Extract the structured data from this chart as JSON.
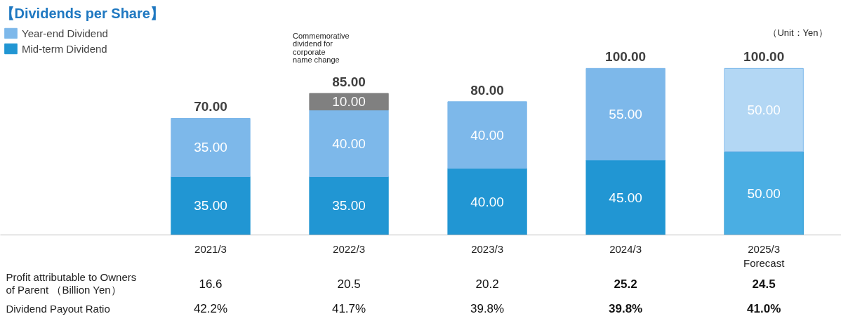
{
  "chart_data": {
    "type": "bar",
    "title": "【Dividends per Share】",
    "stacked": true,
    "legend": "top left",
    "grid": false,
    "tick_labels": "x",
    "categories": [
      "2021/3",
      "2022/3",
      "2023/3",
      "2024/3",
      "2025/3\nForecast"
    ],
    "series": [
      {
        "name": "Mid-term Dividend",
        "color": "#2196d3",
        "colors": [
          "#2196d3",
          "#2196d3",
          "#2196d3",
          "#2196d3",
          "#4aaee3"
        ],
        "values": [
          35,
          35,
          40,
          45,
          50
        ],
        "value_labels": [
          "35.00",
          "35.00",
          "40.00",
          "45.00",
          "50.00"
        ]
      },
      {
        "name": "Year-end Dividend",
        "color": "#7db8ea",
        "colors": [
          "#7db8ea",
          "#7db8ea",
          "#7db8ea",
          "#7db8ea",
          "#b3d7f4"
        ],
        "values": [
          35,
          40,
          40,
          55,
          50
        ],
        "value_labels": [
          "35.00",
          "40.00",
          "40.00",
          "55.00",
          "50.00"
        ]
      },
      {
        "color": "#808080",
        "values": [
          null,
          10,
          null,
          null,
          null
        ],
        "value_labels": [
          null,
          "10.00",
          null,
          null,
          null
        ]
      }
    ],
    "totals": [
      "70.00",
      "85.00",
      "80.00",
      "100.00",
      "100.00"
    ],
    "annotations": [
      "（Unit：Yen）",
      "Commemorative\ndividend for\ncorporate\nname change",
      "Profit attributable to Owners\n of Parent （Billion Yen）",
      "16.6",
      "20.5",
      "20.2",
      "25.2",
      "24.5",
      "Dividend Payout Ratio",
      "42.2%",
      "41.7%",
      "39.8%",
      "39.8%",
      "41.0%"
    ]
  }
}
